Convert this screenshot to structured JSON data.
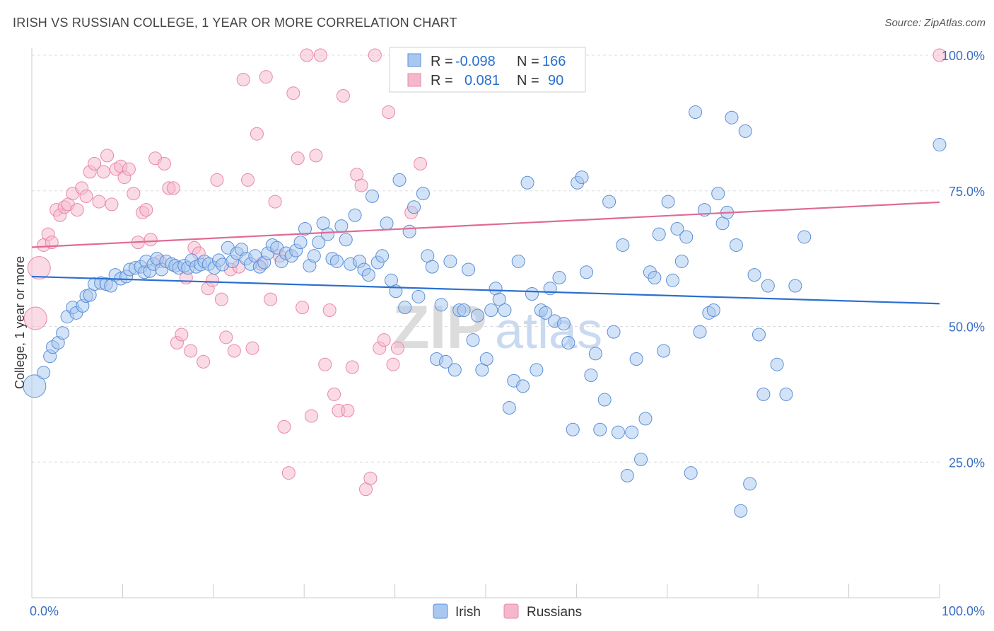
{
  "header": {
    "title": "IRISH VS RUSSIAN COLLEGE, 1 YEAR OR MORE CORRELATION CHART",
    "source": "Source: ZipAtlas.com"
  },
  "watermark": {
    "zip": "ZIP",
    "atlas": "atlas"
  },
  "colors": {
    "irish_fill": "#a8c8f0",
    "irish_stroke": "#5b8fd6",
    "irish_line": "#2a6fcf",
    "russian_fill": "#f5b8cb",
    "russian_stroke": "#e888a8",
    "russian_line": "#e06a93",
    "tick_text": "#3a6fc4",
    "grid": "#dddddd"
  },
  "legend": {
    "rows": [
      {
        "r_label": "R =",
        "r_value": "-0.098",
        "n_label": "N =",
        "n_value": "166"
      },
      {
        "r_label": "R =",
        "r_value": "0.081",
        "n_label": "N =",
        "n_value": "90"
      }
    ]
  },
  "chart_data": {
    "type": "scatter",
    "title": "IRISH VS RUSSIAN COLLEGE, 1 YEAR OR MORE CORRELATION CHART",
    "xlabel": "",
    "ylabel": "College, 1 year or more",
    "xlim": [
      0,
      100
    ],
    "ylim": [
      0,
      100
    ],
    "x_tick_labels": [
      "0.0%",
      "100.0%"
    ],
    "y_ticks": [
      25,
      50,
      75,
      100
    ],
    "y_tick_labels": [
      "25.0%",
      "50.0%",
      "75.0%",
      "100.0%"
    ],
    "grid": "horizontal dashed",
    "legend_position": "top-center",
    "series": [
      {
        "name": "Irish",
        "r": -0.098,
        "n": 166,
        "trend": [
          [
            0,
            59.2
          ],
          [
            100,
            54.2
          ]
        ],
        "points": [
          [
            0.3,
            39.0
          ],
          [
            1.3,
            41.5
          ],
          [
            2.0,
            44.5
          ],
          [
            2.3,
            46.2
          ],
          [
            2.9,
            47.0
          ],
          [
            3.4,
            48.8
          ],
          [
            3.9,
            51.8
          ],
          [
            4.5,
            53.5
          ],
          [
            4.9,
            52.5
          ],
          [
            5.6,
            53.8
          ],
          [
            6.0,
            55.6
          ],
          [
            6.4,
            55.8
          ],
          [
            6.9,
            57.8
          ],
          [
            7.6,
            58.0
          ],
          [
            8.2,
            57.8
          ],
          [
            8.7,
            57.5
          ],
          [
            9.2,
            59.5
          ],
          [
            9.8,
            58.8
          ],
          [
            10.4,
            59.2
          ],
          [
            10.8,
            60.5
          ],
          [
            11.4,
            60.8
          ],
          [
            12.0,
            61.0
          ],
          [
            12.4,
            60.0
          ],
          [
            12.6,
            62.0
          ],
          [
            13.0,
            60.2
          ],
          [
            13.4,
            61.5
          ],
          [
            13.8,
            62.5
          ],
          [
            14.3,
            60.5
          ],
          [
            14.8,
            62.0
          ],
          [
            15.4,
            61.5
          ],
          [
            15.8,
            61.2
          ],
          [
            16.2,
            60.8
          ],
          [
            16.8,
            61.2
          ],
          [
            17.2,
            60.8
          ],
          [
            17.6,
            62.2
          ],
          [
            18.1,
            61.0
          ],
          [
            18.6,
            61.4
          ],
          [
            19.0,
            62.0
          ],
          [
            19.5,
            61.5
          ],
          [
            20.1,
            60.8
          ],
          [
            20.6,
            62.2
          ],
          [
            21.0,
            61.4
          ],
          [
            21.6,
            64.5
          ],
          [
            22.1,
            62.0
          ],
          [
            22.6,
            63.5
          ],
          [
            23.1,
            64.2
          ],
          [
            23.6,
            62.5
          ],
          [
            24.1,
            61.5
          ],
          [
            24.6,
            63.0
          ],
          [
            25.1,
            61.0
          ],
          [
            25.6,
            61.8
          ],
          [
            26.0,
            63.5
          ],
          [
            26.5,
            65.0
          ],
          [
            27.0,
            64.5
          ],
          [
            27.5,
            62.0
          ],
          [
            28.0,
            63.5
          ],
          [
            28.6,
            63.0
          ],
          [
            29.1,
            64.0
          ],
          [
            29.6,
            65.5
          ],
          [
            30.1,
            68.0
          ],
          [
            30.6,
            61.2
          ],
          [
            31.1,
            63.0
          ],
          [
            31.6,
            65.5
          ],
          [
            32.1,
            69.0
          ],
          [
            32.6,
            67.0
          ],
          [
            33.1,
            62.5
          ],
          [
            33.6,
            62.0
          ],
          [
            34.1,
            68.5
          ],
          [
            34.6,
            66.0
          ],
          [
            35.1,
            61.5
          ],
          [
            35.6,
            70.5
          ],
          [
            36.1,
            62.0
          ],
          [
            36.6,
            60.5
          ],
          [
            37.1,
            59.5
          ],
          [
            37.5,
            74.0
          ],
          [
            38.1,
            61.8
          ],
          [
            38.6,
            63.0
          ],
          [
            39.1,
            69.0
          ],
          [
            39.6,
            58.5
          ],
          [
            40.1,
            56.5
          ],
          [
            40.5,
            77.0
          ],
          [
            41.1,
            53.5
          ],
          [
            41.6,
            67.5
          ],
          [
            42.1,
            72.0
          ],
          [
            42.6,
            55.5
          ],
          [
            43.1,
            74.5
          ],
          [
            43.6,
            63.0
          ],
          [
            44.1,
            61.0
          ],
          [
            44.6,
            44.0
          ],
          [
            45.1,
            54.0
          ],
          [
            45.6,
            43.5
          ],
          [
            46.1,
            62.0
          ],
          [
            46.6,
            42.0
          ],
          [
            47.1,
            53.0
          ],
          [
            47.6,
            53.0
          ],
          [
            48.1,
            60.5
          ],
          [
            48.6,
            47.5
          ],
          [
            49.1,
            52.0
          ],
          [
            49.6,
            42.0
          ],
          [
            50.1,
            44.0
          ],
          [
            50.6,
            53.0
          ],
          [
            51.1,
            57.0
          ],
          [
            51.5,
            55.0
          ],
          [
            52.1,
            53.0
          ],
          [
            52.6,
            35.0
          ],
          [
            53.1,
            40.0
          ],
          [
            53.6,
            62.0
          ],
          [
            54.1,
            39.0
          ],
          [
            54.6,
            76.5
          ],
          [
            55.1,
            56.0
          ],
          [
            55.6,
            42.0
          ],
          [
            56.1,
            53.0
          ],
          [
            56.6,
            52.5
          ],
          [
            57.1,
            57.0
          ],
          [
            57.6,
            51.0
          ],
          [
            58.1,
            59.0
          ],
          [
            58.6,
            50.5
          ],
          [
            59.1,
            47.0
          ],
          [
            59.6,
            31.0
          ],
          [
            60.1,
            76.5
          ],
          [
            60.6,
            77.5
          ],
          [
            61.1,
            60.0
          ],
          [
            61.6,
            41.0
          ],
          [
            62.1,
            45.0
          ],
          [
            62.6,
            31.0
          ],
          [
            63.1,
            36.5
          ],
          [
            63.6,
            73.0
          ],
          [
            64.1,
            49.0
          ],
          [
            64.6,
            30.5
          ],
          [
            65.1,
            65.0
          ],
          [
            65.6,
            22.5
          ],
          [
            66.1,
            30.5
          ],
          [
            66.6,
            44.0
          ],
          [
            67.1,
            25.5
          ],
          [
            67.6,
            33.0
          ],
          [
            68.1,
            60.0
          ],
          [
            68.6,
            59.0
          ],
          [
            69.1,
            67.0
          ],
          [
            69.6,
            45.5
          ],
          [
            70.1,
            73.0
          ],
          [
            70.6,
            58.5
          ],
          [
            71.1,
            68.0
          ],
          [
            71.6,
            62.0
          ],
          [
            72.1,
            66.5
          ],
          [
            72.6,
            23.0
          ],
          [
            73.1,
            89.5
          ],
          [
            73.6,
            49.0
          ],
          [
            74.1,
            71.5
          ],
          [
            74.6,
            52.5
          ],
          [
            75.1,
            53.0
          ],
          [
            75.6,
            74.5
          ],
          [
            76.1,
            69.0
          ],
          [
            76.6,
            71.0
          ],
          [
            77.1,
            88.5
          ],
          [
            77.6,
            65.0
          ],
          [
            78.1,
            16.0
          ],
          [
            78.6,
            86.0
          ],
          [
            79.1,
            21.0
          ],
          [
            79.6,
            59.5
          ],
          [
            80.1,
            48.5
          ],
          [
            80.6,
            37.5
          ],
          [
            81.1,
            57.5
          ],
          [
            82.1,
            43.0
          ],
          [
            83.1,
            37.5
          ],
          [
            84.1,
            57.5
          ],
          [
            85.1,
            66.5
          ],
          [
            100.0,
            83.5
          ]
        ]
      },
      {
        "name": "Russians",
        "r": 0.081,
        "n": 90,
        "trend": [
          [
            0,
            64.6
          ],
          [
            100,
            72.9
          ]
        ],
        "points": [
          [
            0.4,
            51.5
          ],
          [
            0.8,
            60.8
          ],
          [
            1.3,
            65.0
          ],
          [
            1.8,
            67.0
          ],
          [
            2.2,
            65.5
          ],
          [
            2.7,
            71.5
          ],
          [
            3.1,
            70.5
          ],
          [
            3.6,
            72.0
          ],
          [
            4.0,
            72.5
          ],
          [
            4.5,
            74.5
          ],
          [
            5.0,
            71.5
          ],
          [
            5.5,
            75.5
          ],
          [
            6.0,
            74.0
          ],
          [
            6.4,
            78.5
          ],
          [
            6.9,
            80.0
          ],
          [
            7.4,
            73.0
          ],
          [
            7.9,
            78.5
          ],
          [
            8.3,
            81.5
          ],
          [
            8.8,
            72.5
          ],
          [
            9.3,
            79.0
          ],
          [
            9.8,
            79.5
          ],
          [
            10.2,
            77.5
          ],
          [
            10.7,
            79.0
          ],
          [
            11.2,
            74.5
          ],
          [
            11.7,
            65.5
          ],
          [
            12.2,
            71.0
          ],
          [
            12.6,
            71.5
          ],
          [
            13.1,
            66.0
          ],
          [
            13.6,
            81.0
          ],
          [
            14.1,
            62.0
          ],
          [
            14.6,
            80.0
          ],
          [
            15.1,
            75.5
          ],
          [
            15.6,
            75.5
          ],
          [
            16.0,
            47.0
          ],
          [
            16.5,
            48.5
          ],
          [
            17.0,
            59.0
          ],
          [
            17.5,
            45.5
          ],
          [
            17.9,
            64.5
          ],
          [
            18.4,
            63.5
          ],
          [
            18.9,
            43.5
          ],
          [
            19.4,
            57.0
          ],
          [
            19.9,
            58.5
          ],
          [
            20.4,
            77.0
          ],
          [
            20.9,
            55.0
          ],
          [
            21.4,
            48.0
          ],
          [
            21.9,
            60.5
          ],
          [
            22.3,
            45.5
          ],
          [
            22.8,
            61.0
          ],
          [
            23.3,
            95.5
          ],
          [
            23.8,
            77.0
          ],
          [
            24.3,
            46.0
          ],
          [
            24.8,
            85.5
          ],
          [
            25.3,
            61.5
          ],
          [
            25.8,
            96.0
          ],
          [
            26.3,
            55.0
          ],
          [
            26.8,
            73.0
          ],
          [
            27.3,
            63.0
          ],
          [
            27.8,
            31.5
          ],
          [
            28.3,
            23.0
          ],
          [
            28.8,
            93.0
          ],
          [
            29.3,
            81.0
          ],
          [
            29.8,
            53.5
          ],
          [
            30.3,
            100.0
          ],
          [
            30.8,
            33.5
          ],
          [
            31.3,
            81.5
          ],
          [
            31.8,
            100.0
          ],
          [
            32.3,
            43.0
          ],
          [
            32.8,
            53.0
          ],
          [
            33.3,
            37.5
          ],
          [
            33.8,
            34.5
          ],
          [
            34.3,
            92.5
          ],
          [
            34.8,
            34.5
          ],
          [
            35.3,
            42.5
          ],
          [
            35.8,
            78.0
          ],
          [
            36.3,
            76.0
          ],
          [
            36.8,
            20.0
          ],
          [
            37.3,
            22.0
          ],
          [
            37.8,
            100.0
          ],
          [
            38.3,
            46.0
          ],
          [
            38.8,
            47.5
          ],
          [
            39.3,
            89.5
          ],
          [
            39.8,
            43.0
          ],
          [
            40.3,
            46.0
          ],
          [
            40.8,
            100.0
          ],
          [
            41.3,
            100.0
          ],
          [
            41.8,
            71.0
          ],
          [
            42.3,
            95.0
          ],
          [
            42.8,
            80.0
          ],
          [
            43.3,
            100.0
          ],
          [
            100.0,
            100.0
          ]
        ]
      }
    ]
  },
  "bottom_legend": {
    "irish": "Irish",
    "russians": "Russians"
  }
}
